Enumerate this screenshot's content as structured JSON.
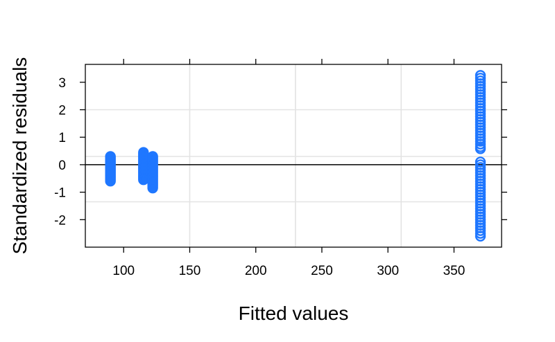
{
  "chart_data": {
    "type": "scatter",
    "title": "",
    "xlabel": "Fitted values",
    "ylabel": "Standardized residuals",
    "xlim": [
      71,
      386
    ],
    "ylim": [
      -3.0,
      3.65
    ],
    "x_ticks": [
      100,
      150,
      200,
      250,
      300,
      350
    ],
    "y_ticks": [
      -2,
      -1,
      0,
      1,
      2,
      3
    ],
    "x_tick_labels": [
      "100",
      "150",
      "200",
      "250",
      "300",
      "350"
    ],
    "y_tick_labels": [
      "-2",
      "-1",
      "0",
      "1",
      "2",
      "3"
    ],
    "reference_line_y": 0,
    "grid": true,
    "grid_x": [
      150,
      230,
      310
    ],
    "grid_y": [
      -1.35,
      0.3,
      2.0
    ],
    "marker": "open-circle",
    "point_color": "#1f77ff",
    "grid_color": "#e3e3e3",
    "series": [
      {
        "points": [
          [
            90,
            0.3
          ],
          [
            90,
            0.25
          ],
          [
            90,
            0.2
          ],
          [
            90,
            0.15
          ],
          [
            90,
            0.1
          ],
          [
            90,
            0.05
          ],
          [
            90,
            0.0
          ],
          [
            90,
            -0.05
          ],
          [
            90,
            -0.1
          ],
          [
            90,
            -0.15
          ],
          [
            90,
            -0.2
          ],
          [
            90,
            -0.25
          ],
          [
            90,
            -0.3
          ],
          [
            90,
            -0.35
          ],
          [
            90,
            -0.4
          ],
          [
            90,
            -0.45
          ],
          [
            90,
            -0.5
          ],
          [
            90,
            -0.55
          ],
          [
            90,
            -0.6
          ],
          [
            115,
            0.45
          ],
          [
            115,
            0.4
          ],
          [
            115,
            0.35
          ],
          [
            115,
            0.3
          ],
          [
            115,
            0.25
          ],
          [
            115,
            0.2
          ],
          [
            115,
            0.15
          ],
          [
            115,
            0.1
          ],
          [
            115,
            0.05
          ],
          [
            115,
            0.0
          ],
          [
            115,
            -0.05
          ],
          [
            115,
            -0.1
          ],
          [
            115,
            -0.15
          ],
          [
            115,
            -0.2
          ],
          [
            115,
            -0.25
          ],
          [
            115,
            -0.3
          ],
          [
            115,
            -0.35
          ],
          [
            115,
            -0.4
          ],
          [
            115,
            -0.45
          ],
          [
            115,
            -0.5
          ],
          [
            115,
            -0.55
          ],
          [
            122,
            0.3
          ],
          [
            122,
            0.25
          ],
          [
            122,
            0.2
          ],
          [
            122,
            0.15
          ],
          [
            122,
            0.1
          ],
          [
            122,
            0.05
          ],
          [
            122,
            0.0
          ],
          [
            122,
            -0.05
          ],
          [
            122,
            -0.1
          ],
          [
            122,
            -0.15
          ],
          [
            122,
            -0.2
          ],
          [
            122,
            -0.25
          ],
          [
            122,
            -0.3
          ],
          [
            122,
            -0.35
          ],
          [
            122,
            -0.4
          ],
          [
            122,
            -0.45
          ],
          [
            122,
            -0.5
          ],
          [
            122,
            -0.55
          ],
          [
            122,
            -0.6
          ],
          [
            122,
            -0.65
          ],
          [
            122,
            -0.7
          ],
          [
            122,
            -0.75
          ],
          [
            122,
            -0.8
          ],
          [
            122,
            -0.85
          ],
          [
            370,
            3.25
          ],
          [
            370,
            3.15
          ],
          [
            370,
            3.05
          ],
          [
            370,
            2.95
          ],
          [
            370,
            2.85
          ],
          [
            370,
            2.75
          ],
          [
            370,
            2.65
          ],
          [
            370,
            2.55
          ],
          [
            370,
            2.45
          ],
          [
            370,
            2.35
          ],
          [
            370,
            2.25
          ],
          [
            370,
            2.15
          ],
          [
            370,
            2.05
          ],
          [
            370,
            1.95
          ],
          [
            370,
            1.85
          ],
          [
            370,
            1.75
          ],
          [
            370,
            1.65
          ],
          [
            370,
            1.55
          ],
          [
            370,
            1.45
          ],
          [
            370,
            1.35
          ],
          [
            370,
            1.25
          ],
          [
            370,
            1.15
          ],
          [
            370,
            1.05
          ],
          [
            370,
            0.95
          ],
          [
            370,
            0.85
          ],
          [
            370,
            0.75
          ],
          [
            370,
            0.65
          ],
          [
            370,
            0.58
          ],
          [
            370,
            0.1
          ],
          [
            370,
            0.0
          ],
          [
            370,
            -0.1
          ],
          [
            370,
            -0.2
          ],
          [
            370,
            -0.3
          ],
          [
            370,
            -0.4
          ],
          [
            370,
            -0.5
          ],
          [
            370,
            -0.6
          ],
          [
            370,
            -0.7
          ],
          [
            370,
            -0.8
          ],
          [
            370,
            -0.9
          ],
          [
            370,
            -1.0
          ],
          [
            370,
            -1.1
          ],
          [
            370,
            -1.2
          ],
          [
            370,
            -1.3
          ],
          [
            370,
            -1.4
          ],
          [
            370,
            -1.5
          ],
          [
            370,
            -1.6
          ],
          [
            370,
            -1.7
          ],
          [
            370,
            -1.8
          ],
          [
            370,
            -1.9
          ],
          [
            370,
            -2.0
          ],
          [
            370,
            -2.1
          ],
          [
            370,
            -2.2
          ],
          [
            370,
            -2.3
          ],
          [
            370,
            -2.4
          ],
          [
            370,
            -2.5
          ],
          [
            370,
            -2.6
          ]
        ]
      }
    ]
  }
}
